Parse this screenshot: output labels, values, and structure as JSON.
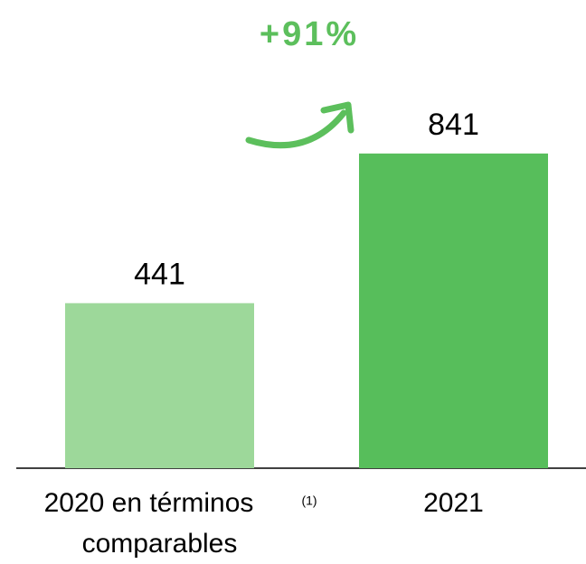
{
  "chart_data": {
    "type": "bar",
    "categories": [
      "2020 en términos comparables",
      "2021"
    ],
    "category_note": "(1)",
    "values": [
      441,
      841
    ],
    "colors": [
      "#9dd89a",
      "#57be5b"
    ],
    "annotation": "+91%",
    "ylim": [
      0,
      1000
    ]
  }
}
